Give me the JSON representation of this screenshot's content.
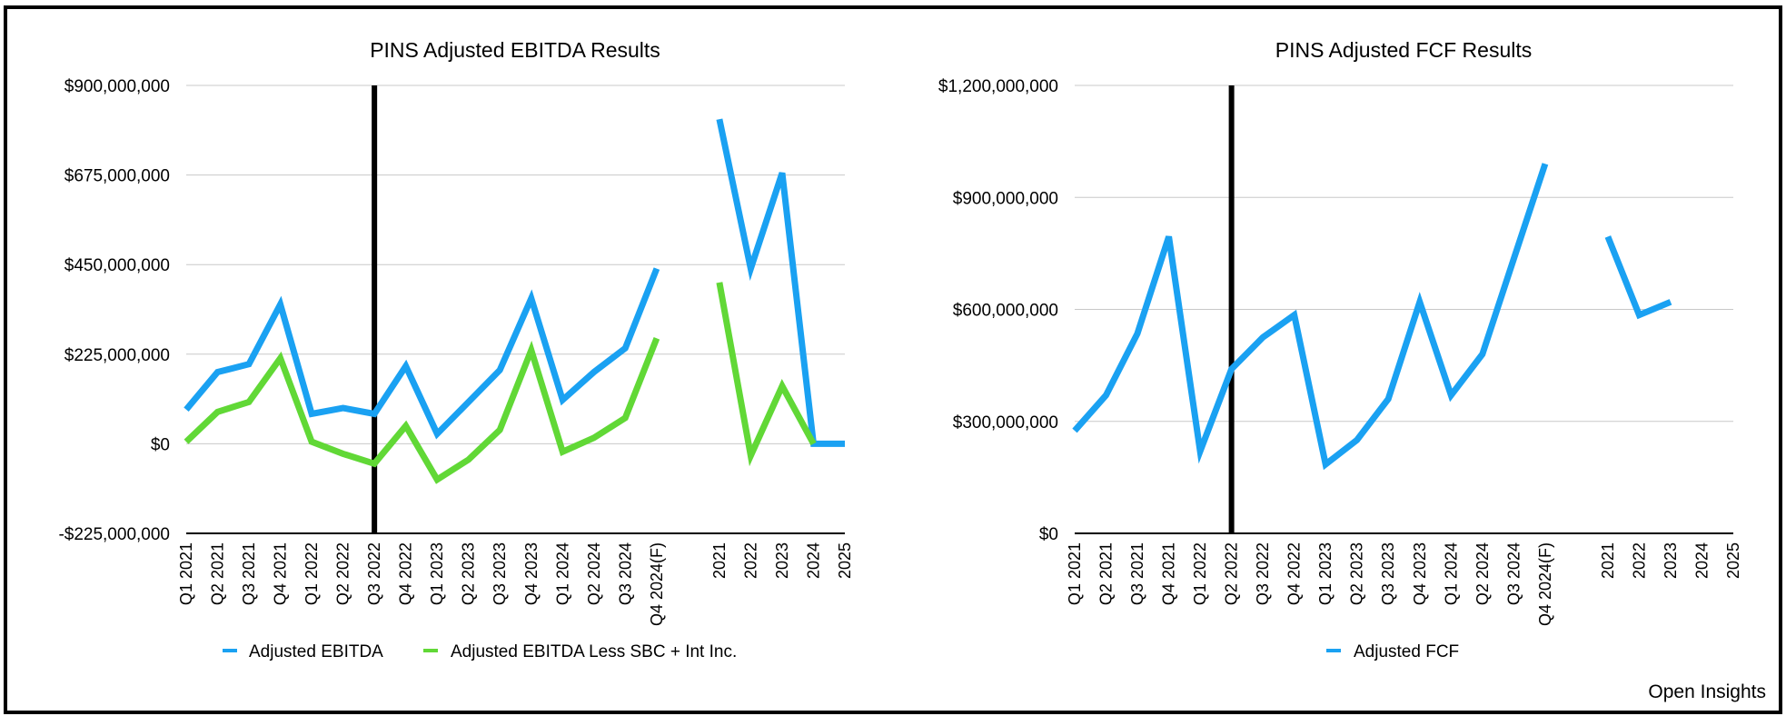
{
  "watermark": "Open Insights",
  "colors": {
    "blue": "#1aa1f2",
    "green": "#61d836",
    "divider": "#000000"
  },
  "chart_data": [
    {
      "type": "line",
      "title": "PINS Adjusted EBITDA Results",
      "categories": [
        "Q1 2021",
        "Q2 2021",
        "Q3 2021",
        "Q4 2021",
        "Q1 2022",
        "Q2 2022",
        "Q3 2022",
        "Q4 2022",
        "Q1 2023",
        "Q2 2023",
        "Q3 2023",
        "Q4 2023",
        "Q1 2024",
        "Q2 2024",
        "Q3 2024",
        "Q4 2024(F)",
        "",
        "2021",
        "2022",
        "2023",
        "2024",
        "2025"
      ],
      "ylim": [
        -225000000,
        900000000
      ],
      "yticks": [
        -225000000,
        0,
        225000000,
        450000000,
        675000000,
        900000000
      ],
      "ytick_labels": [
        "-$225,000,000",
        "$0",
        "$225,000,000",
        "$450,000,000",
        "$675,000,000",
        "$900,000,000"
      ],
      "divider_category": "Q3 2022",
      "legend_position": "bottom",
      "series": [
        {
          "name": "Adjusted EBITDA",
          "color": "#1aa1f2",
          "values": [
            86000000,
            180000000,
            200000000,
            350000000,
            75000000,
            90000000,
            75000000,
            195000000,
            25000000,
            105000000,
            185000000,
            365000000,
            110000000,
            180000000,
            240000000,
            440000000,
            null,
            815000000,
            440000000,
            680000000,
            0,
            0
          ]
        },
        {
          "name": "Adjusted EBITDA Less SBC + Int Inc.",
          "color": "#61d836",
          "values": [
            5000000,
            80000000,
            105000000,
            215000000,
            5000000,
            -25000000,
            -50000000,
            45000000,
            -90000000,
            -40000000,
            35000000,
            235000000,
            -20000000,
            15000000,
            65000000,
            265000000,
            null,
            405000000,
            -30000000,
            145000000,
            0,
            null
          ]
        }
      ]
    },
    {
      "type": "line",
      "title": "PINS Adjusted FCF Results",
      "categories": [
        "Q1 2021",
        "Q2 2021",
        "Q3 2021",
        "Q4 2021",
        "Q1 2022",
        "Q2 2022",
        "Q3 2022",
        "Q4 2022",
        "Q1 2023",
        "Q2 2023",
        "Q3 2023",
        "Q4 2023",
        "Q1 2024",
        "Q2 2024",
        "Q3 2024",
        "Q4 2024(F)",
        "",
        "2021",
        "2022",
        "2023",
        "2024",
        "2025"
      ],
      "ylim": [
        0,
        1200000000
      ],
      "yticks": [
        0,
        300000000,
        600000000,
        900000000,
        1200000000
      ],
      "ytick_labels": [
        "$0",
        "$300,000,000",
        "$600,000,000",
        "$900,000,000",
        "$1,200,000,000"
      ],
      "divider_category": "Q2 2022",
      "legend_position": "bottom",
      "series": [
        {
          "name": "Adjusted FCF",
          "color": "#1aa1f2",
          "values": [
            275000000,
            370000000,
            535000000,
            795000000,
            220000000,
            440000000,
            525000000,
            585000000,
            185000000,
            250000000,
            360000000,
            620000000,
            370000000,
            480000000,
            735000000,
            990000000,
            null,
            795000000,
            585000000,
            620000000,
            null,
            null
          ]
        }
      ]
    }
  ]
}
